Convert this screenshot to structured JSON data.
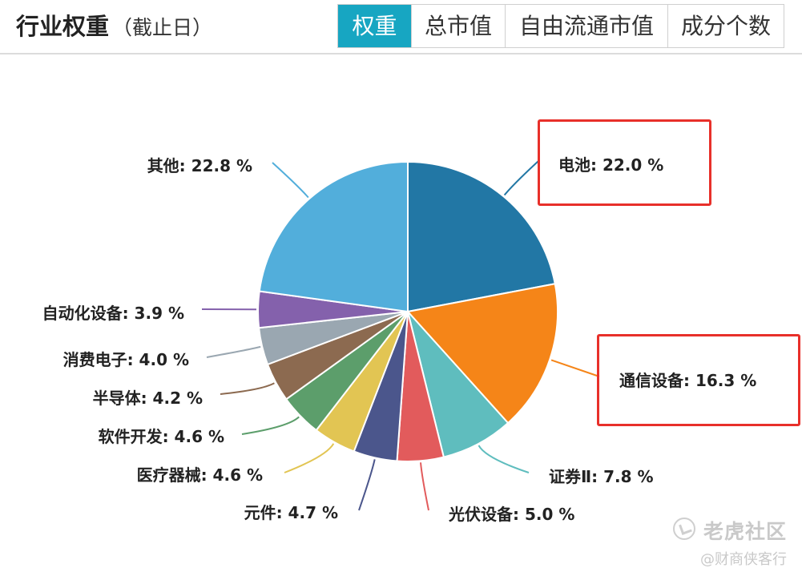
{
  "header": {
    "title": "行业权重",
    "subtitle": "（截止日）",
    "tabs": [
      {
        "label": "权重",
        "active": true
      },
      {
        "label": "总市值",
        "active": false
      },
      {
        "label": "自由流通市值",
        "active": false
      },
      {
        "label": "成分个数",
        "active": false
      }
    ]
  },
  "chart_data": {
    "type": "pie",
    "unit": "%",
    "slices": [
      {
        "name": "电池",
        "value": 22.0,
        "color": "#2277a5",
        "highlight": true
      },
      {
        "name": "通信设备",
        "value": 16.3,
        "color": "#f58518",
        "highlight": true
      },
      {
        "name": "证券Ⅱ",
        "value": 7.8,
        "color": "#5fbdbe"
      },
      {
        "name": "光伏设备",
        "value": 5.0,
        "color": "#e25b5c"
      },
      {
        "name": "元件",
        "value": 4.7,
        "color": "#4b568c"
      },
      {
        "name": "医疗器械",
        "value": 4.6,
        "color": "#e2c553"
      },
      {
        "name": "软件开发",
        "value": 4.6,
        "color": "#5c9e6b"
      },
      {
        "name": "半导体",
        "value": 4.2,
        "color": "#8c6a50"
      },
      {
        "name": "消费电子",
        "value": 4.0,
        "color": "#9aa7b1"
      },
      {
        "name": "自动化设备",
        "value": 3.9,
        "color": "#8461ac"
      },
      {
        "name": "其他",
        "value": 22.8,
        "color": "#52aedb"
      }
    ],
    "highlight_color": "#e8302a"
  },
  "watermark": {
    "main": "老虎社区",
    "sub": "@财商侠客行"
  }
}
